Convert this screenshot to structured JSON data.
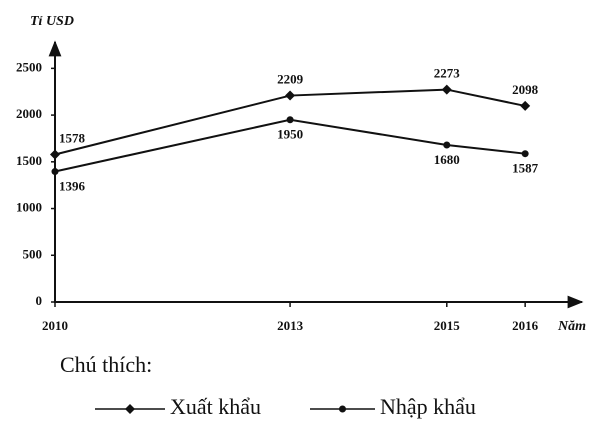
{
  "chart_data": {
    "type": "line",
    "y_label": "Tỉ USD",
    "x_label": "Năm",
    "x": [
      2010,
      2013,
      2015,
      2016
    ],
    "series": [
      {
        "name": "Xuất khẩu",
        "color": "#111111",
        "marker": "diamond",
        "values": [
          1578,
          2209,
          2273,
          2098
        ]
      },
      {
        "name": "Nhập khẩu",
        "color": "#111111",
        "marker": "circle",
        "values": [
          1396,
          1950,
          1680,
          1587
        ]
      }
    ],
    "xlim": [
      2010,
      2016.7
    ],
    "xticks": [
      2010,
      2013,
      2015,
      2016
    ],
    "ylim": [
      0,
      2750
    ],
    "yticks": [
      0,
      500,
      1000,
      1500,
      2000,
      2500
    ],
    "legend_title": "Chú thích:"
  }
}
